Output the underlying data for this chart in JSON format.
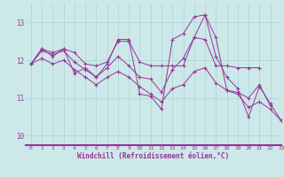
{
  "xlabel": "Windchill (Refroidissement éolien,°C)",
  "bg_color": "#cce8e8",
  "grid_color": "#aad4d4",
  "line_color": "#993399",
  "axis_color": "#993399",
  "xlim": [
    -0.5,
    23
  ],
  "ylim": [
    9.75,
    13.5
  ],
  "yticks": [
    10,
    11,
    12,
    13
  ],
  "xticks": [
    0,
    1,
    2,
    3,
    4,
    5,
    6,
    7,
    8,
    9,
    10,
    11,
    12,
    13,
    14,
    15,
    16,
    17,
    18,
    19,
    20,
    21,
    22,
    23
  ],
  "series": [
    [
      11.9,
      12.3,
      12.1,
      12.3,
      11.65,
      11.8,
      11.55,
      11.9,
      12.55,
      12.55,
      11.1,
      11.05,
      10.7,
      12.55,
      12.7,
      13.15,
      13.2,
      12.6,
      11.2,
      11.15,
      11.0,
      11.35,
      10.8,
      null
    ],
    [
      11.9,
      12.3,
      12.2,
      12.3,
      12.2,
      11.9,
      11.85,
      11.95,
      12.5,
      12.5,
      11.95,
      11.85,
      11.85,
      11.85,
      11.85,
      12.6,
      12.55,
      11.85,
      11.85,
      11.8,
      11.8,
      11.8,
      null,
      null
    ],
    [
      11.9,
      12.25,
      12.15,
      12.25,
      11.95,
      11.75,
      11.55,
      11.8,
      12.1,
      11.85,
      11.55,
      11.5,
      11.15,
      11.75,
      12.05,
      12.6,
      13.2,
      12.1,
      11.55,
      11.25,
      10.5,
      11.3,
      10.85,
      10.4
    ],
    [
      11.9,
      12.05,
      11.9,
      12.0,
      11.75,
      11.55,
      11.35,
      11.55,
      11.7,
      11.55,
      11.3,
      11.1,
      10.9,
      11.25,
      11.35,
      11.7,
      11.8,
      11.4,
      11.2,
      11.1,
      10.75,
      10.9,
      10.7,
      10.4
    ]
  ]
}
